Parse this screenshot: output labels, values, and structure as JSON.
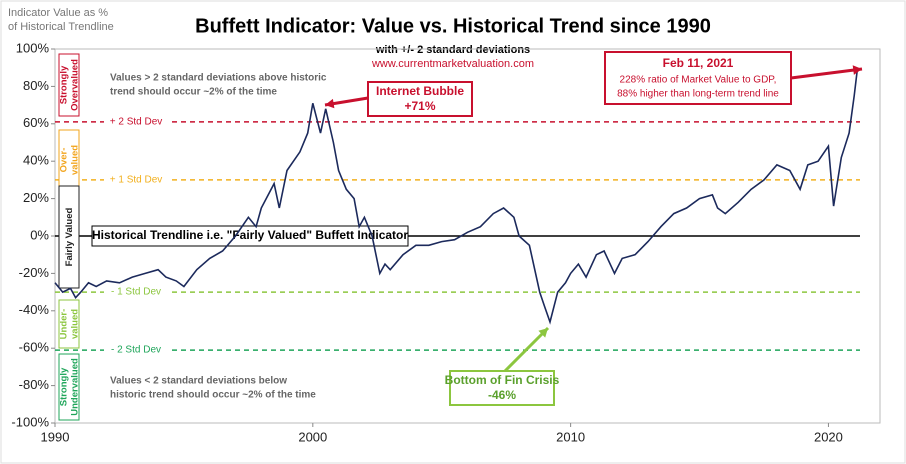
{
  "chart_data": {
    "type": "line",
    "title": "Buffett Indicator: Value vs. Historical Trend since 1990",
    "subtitle": "with +/- 2 standard deviations",
    "source": "www.currentmarketvaluation.com",
    "ylabel": [
      "Indicator Value as %",
      "of Historical Trendline"
    ],
    "xlim": [
      1990,
      2022
    ],
    "xticks": [
      1990,
      2000,
      2010,
      2020
    ],
    "ylim": [
      -100,
      100
    ],
    "yticks": [
      {
        "value": -100,
        "label": "-100%"
      },
      {
        "value": -80,
        "label": "-80%"
      },
      {
        "value": -60,
        "label": "-60%"
      },
      {
        "value": -40,
        "label": "-40%"
      },
      {
        "value": -20,
        "label": "-20%"
      },
      {
        "value": 0,
        "label": "0%"
      },
      {
        "value": 20,
        "label": "20%"
      },
      {
        "value": 40,
        "label": "40%"
      },
      {
        "value": 60,
        "label": "60%"
      },
      {
        "value": 80,
        "label": "80%"
      },
      {
        "value": 100,
        "label": "100%"
      }
    ],
    "series": [
      {
        "color": "#1c2a5c",
        "x": [
          1990.0,
          1990.3,
          1990.6,
          1990.8,
          1991.0,
          1991.3,
          1991.6,
          1992.0,
          1992.5,
          1993.0,
          1993.5,
          1994.0,
          1994.3,
          1994.7,
          1995.0,
          1995.5,
          1996.0,
          1996.5,
          1997.0,
          1997.5,
          1997.8,
          1998.0,
          1998.5,
          1998.7,
          1999.0,
          1999.5,
          1999.8,
          2000.0,
          2000.3,
          2000.5,
          2000.8,
          2001.0,
          2001.3,
          2001.6,
          2001.8,
          2002.0,
          2002.3,
          2002.6,
          2002.8,
          2003.0,
          2003.5,
          2004.0,
          2004.5,
          2005.0,
          2005.5,
          2006.0,
          2006.5,
          2007.0,
          2007.4,
          2007.8,
          2008.0,
          2008.4,
          2008.8,
          2009.0,
          2009.2,
          2009.5,
          2009.8,
          2010.0,
          2010.3,
          2010.6,
          2011.0,
          2011.3,
          2011.7,
          2012.0,
          2012.5,
          2013.0,
          2013.5,
          2014.0,
          2014.5,
          2015.0,
          2015.5,
          2015.7,
          2016.0,
          2016.5,
          2017.0,
          2017.5,
          2018.0,
          2018.5,
          2018.9,
          2019.2,
          2019.6,
          2020.0,
          2020.2,
          2020.5,
          2020.8,
          2021.0,
          2021.11
        ],
        "values": [
          -25,
          -30,
          -28,
          -33,
          -30,
          -25,
          -27,
          -24,
          -25,
          -22,
          -20,
          -18,
          -22,
          -24,
          -27,
          -18,
          -12,
          -8,
          0,
          10,
          5,
          15,
          28,
          15,
          35,
          45,
          55,
          71,
          55,
          68,
          50,
          35,
          25,
          20,
          5,
          10,
          0,
          -20,
          -15,
          -18,
          -10,
          -5,
          -5,
          -3,
          -2,
          2,
          5,
          12,
          15,
          10,
          0,
          -5,
          -30,
          -38,
          -46,
          -30,
          -25,
          -20,
          -15,
          -22,
          -10,
          -8,
          -20,
          -12,
          -10,
          -3,
          5,
          12,
          15,
          20,
          22,
          15,
          12,
          18,
          25,
          30,
          38,
          35,
          25,
          38,
          40,
          48,
          16,
          42,
          55,
          75,
          88
        ]
      }
    ],
    "trendline_label": "Historical Trendline i.e. \"Fairly Valued\" Buffett Indicator",
    "std_lines": [
      {
        "label": "+ 2 Std Dev",
        "value": 61,
        "color": "#c8102e"
      },
      {
        "label": "+ 1 Std Dev",
        "value": 30,
        "color": "#f2b01e"
      },
      {
        "label": "- 1 Std Dev",
        "value": -30,
        "color": "#8cc63f"
      },
      {
        "label": "- 2 Std Dev",
        "value": -61,
        "color": "#1fa55a"
      }
    ],
    "zones": [
      {
        "label": "Strongly Overvalued",
        "color": "#c8102e"
      },
      {
        "label": "Over-valued",
        "color": "#f2a51e"
      },
      {
        "label": "Fairly Valued",
        "color": "#222222"
      },
      {
        "label": "Under-valued",
        "color": "#8cc63f"
      },
      {
        "label": "Strongly Undervalued",
        "color": "#1fa55a"
      }
    ],
    "note_high": [
      "Values > 2 standard deviations above historic",
      "trend should occur ~2% of the time"
    ],
    "note_low": [
      "Values < 2 standard deviations below",
      "historic trend should occur ~2% of the time"
    ],
    "bubble": [
      "Internet Bubble",
      "+71%"
    ],
    "crisis": [
      "Bottom of Fin Crisis",
      "-46%"
    ],
    "latest": [
      "Feb 11, 2021",
      "228% ratio of Market Value to GDP,",
      "88% higher than long-term trend line"
    ]
  }
}
